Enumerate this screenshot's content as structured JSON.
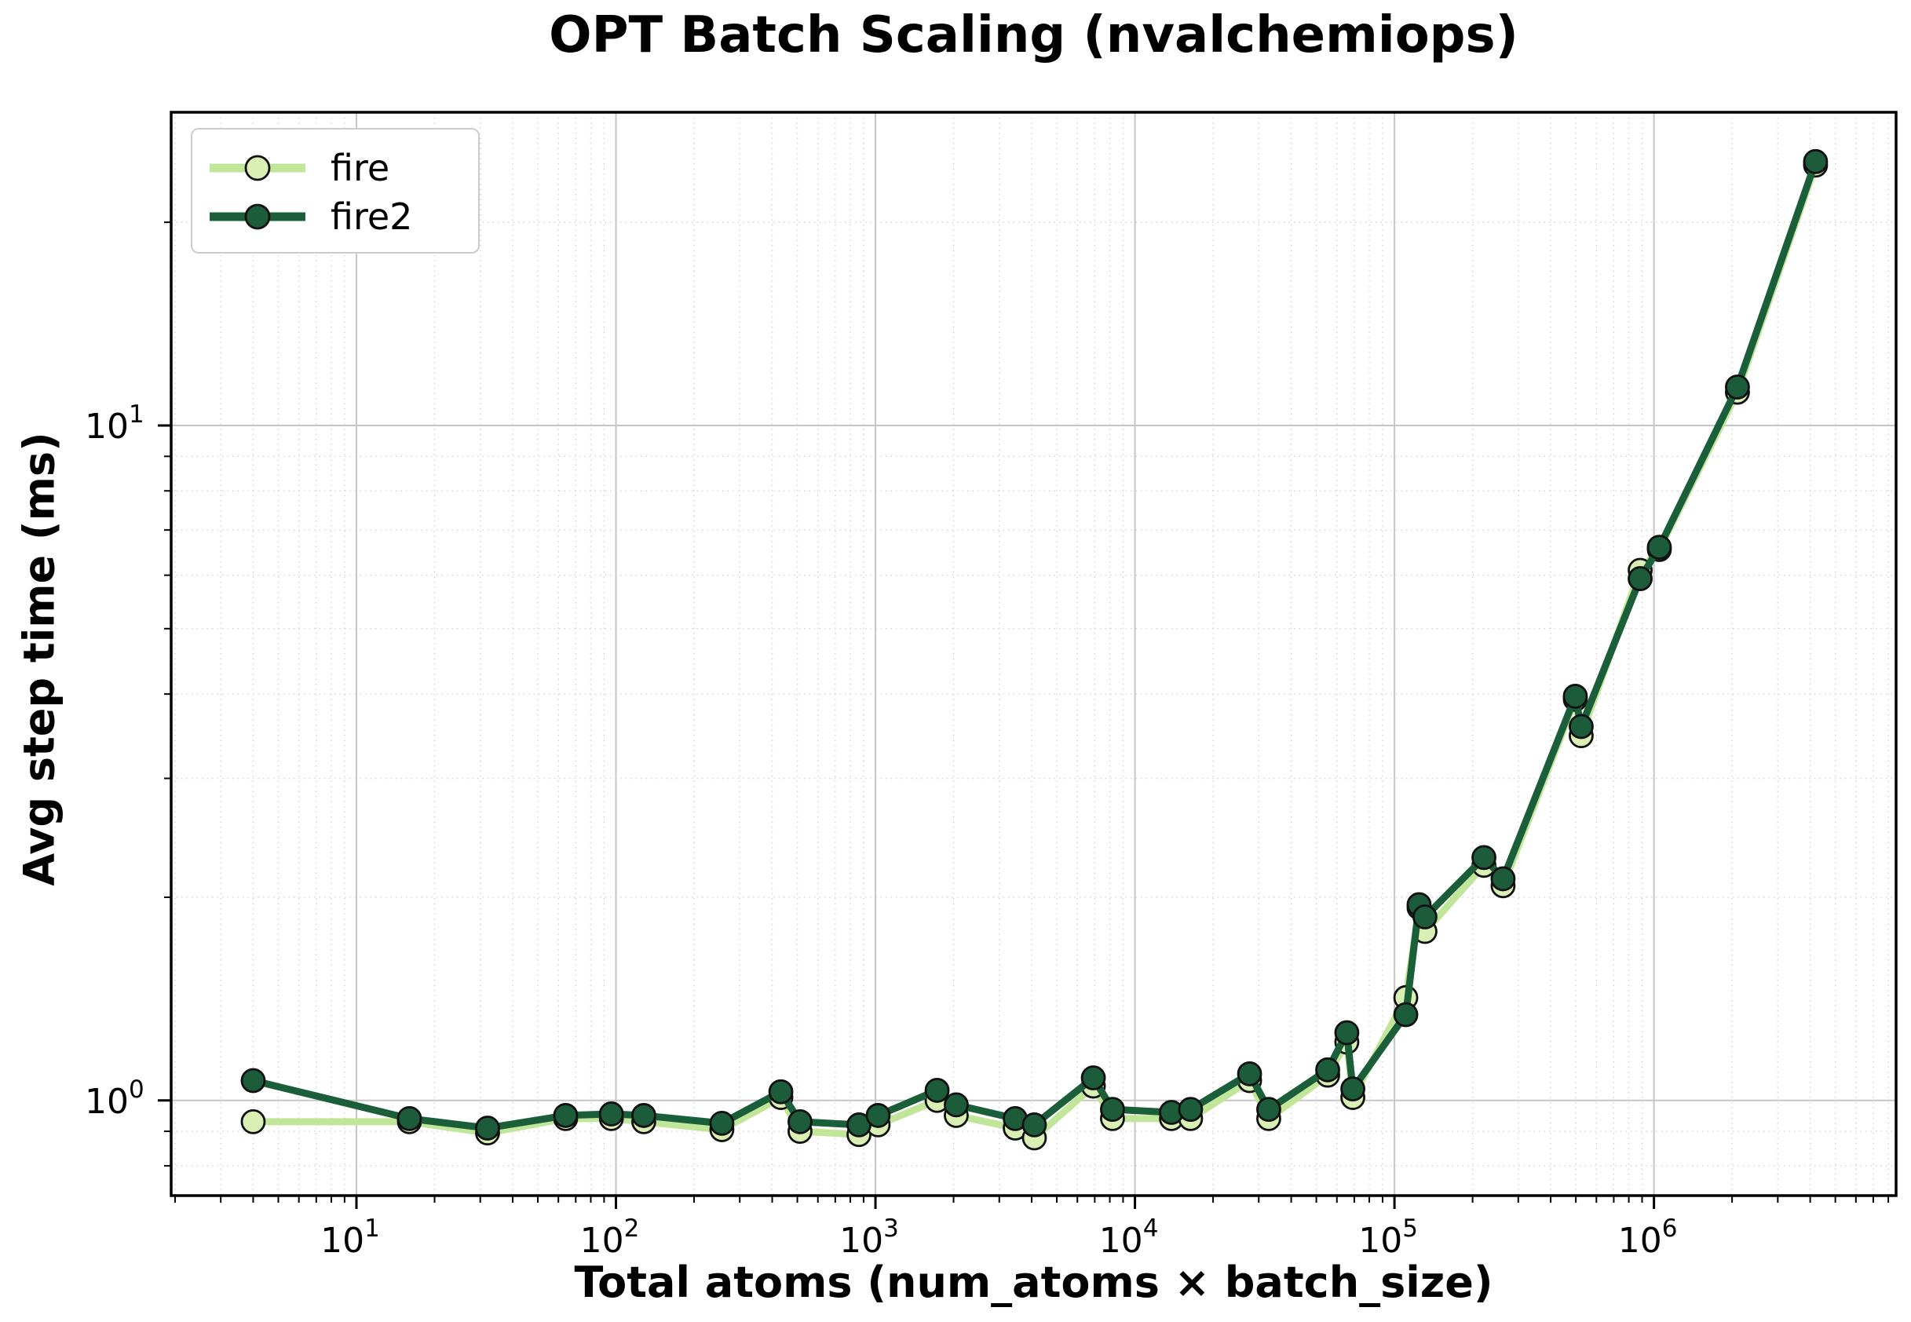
{
  "chart_data": {
    "type": "line",
    "title": "OPT Batch Scaling (nvalchemiops)",
    "xlabel": "Total atoms (num_atoms × batch_size)",
    "ylabel": "Avg step time (ms)",
    "x_scale": "log",
    "y_scale": "log",
    "x_range_log10": [
      0.286,
      6.933
    ],
    "y_range_log10": [
      -0.141,
      1.464
    ],
    "x_major_tick_exponents": [
      1,
      2,
      3,
      4,
      5,
      6
    ],
    "y_major_tick_exponents": [
      0,
      1
    ],
    "grid": true,
    "legend_position": "upper-left",
    "x": [
      4,
      16,
      32,
      64,
      96,
      128,
      256,
      432,
      512,
      864,
      1024,
      1728,
      2048,
      3456,
      4096,
      6912,
      8192,
      13824,
      16384,
      27648,
      32768,
      55296,
      65536,
      69120,
      110592,
      124416,
      131072,
      221184,
      262144,
      497664,
      524288,
      884736,
      1048576,
      2097152,
      4194304
    ],
    "series": [
      {
        "name": "fire",
        "line_color": "#c2e699",
        "marker_face": "#d9efb4",
        "marker_edge": "#111111",
        "values": [
          0.93,
          0.93,
          0.895,
          0.94,
          0.94,
          0.93,
          0.905,
          1.01,
          0.9,
          0.89,
          0.92,
          1.0,
          0.95,
          0.91,
          0.88,
          1.05,
          0.94,
          0.94,
          0.94,
          1.07,
          0.94,
          1.09,
          1.22,
          1.01,
          1.42,
          1.93,
          1.78,
          2.23,
          2.08,
          3.93,
          3.47,
          6.1,
          6.55,
          11.2,
          24.3
        ]
      },
      {
        "name": "fire2",
        "line_color": "#1a5e3a",
        "marker_face": "#1d5c3a",
        "marker_edge": "#111111",
        "values": [
          1.07,
          0.94,
          0.91,
          0.95,
          0.955,
          0.95,
          0.925,
          1.03,
          0.93,
          0.92,
          0.95,
          1.035,
          0.985,
          0.94,
          0.92,
          1.08,
          0.97,
          0.96,
          0.97,
          1.095,
          0.97,
          1.11,
          1.26,
          1.04,
          1.34,
          1.95,
          1.87,
          2.29,
          2.13,
          3.97,
          3.58,
          5.93,
          6.6,
          11.4,
          24.6
        ]
      }
    ]
  },
  "legend": {
    "items": [
      {
        "label": "fire"
      },
      {
        "label": "fire2"
      }
    ]
  },
  "style": {
    "grid_major_color": "#c6c6c6",
    "grid_minor_color": "#d4d4d4",
    "frame_color": "#000000",
    "tick_label": "10"
  }
}
